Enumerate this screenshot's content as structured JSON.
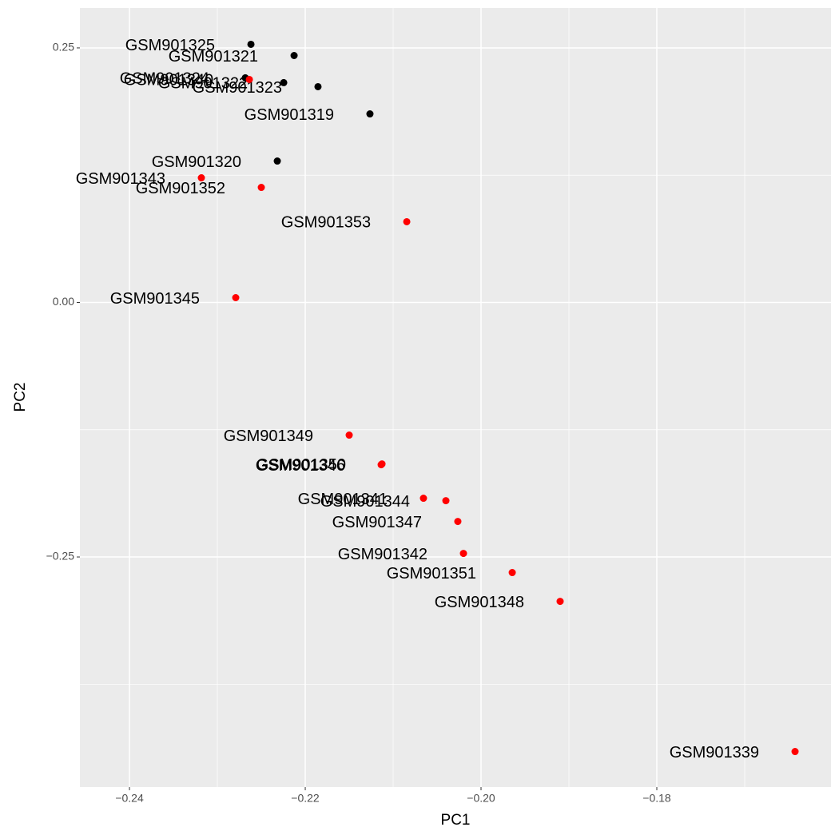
{
  "chart_data": {
    "type": "scatter",
    "xlabel": "PC1",
    "ylabel": "PC2",
    "xlim": [
      -0.24564,
      -0.16018
    ],
    "ylim": [
      -0.476,
      0.2892
    ],
    "xticks": [
      {
        "value": -0.24,
        "label": "−0.24"
      },
      {
        "value": -0.22,
        "label": "−0.22"
      },
      {
        "value": -0.2,
        "label": "−0.20"
      },
      {
        "value": -0.18,
        "label": "−0.18"
      }
    ],
    "yticks": [
      0.25,
      {
        "value": 0,
        "label": "0.00"
      },
      {
        "value": -0.25,
        "label": "−0.25"
      }
    ],
    "x_minor_breaks": [
      -0.23,
      -0.21,
      -0.19,
      -0.17
    ],
    "y_minor_breaks": [
      0.125,
      -0.125,
      -0.375
    ],
    "grid": true,
    "series": [
      {
        "color": "#000000",
        "x": [
          -0.22618,
          -0.22127,
          -0.21855,
          -0.21264,
          -0.22318,
          -0.22682,
          -0.22245
        ],
        "values": [
          0.2535,
          0.2425,
          0.2119,
          0.1852,
          0.1389,
          0.2206,
          0.2159
        ],
        "labels": [
          "GSM901325",
          "GSM901321",
          "GSM901323",
          "GSM901319",
          "GSM901320",
          "GSM901324",
          "GSM901322"
        ]
      },
      {
        "color": "#ff0000",
        "x": [
          -0.22636,
          -0.23182,
          -0.225,
          -0.20845,
          -0.22791,
          -0.215,
          -0.21127,
          -0.21136,
          -0.20655,
          -0.204,
          -0.20264,
          -0.202,
          -0.19645,
          -0.191,
          -0.16427
        ],
        "values": [
          0.219,
          0.1224,
          0.113,
          0.0793,
          0.0047,
          -0.1303,
          -0.1586,
          -0.1594,
          -0.1923,
          -0.1947,
          -0.2151,
          -0.2465,
          -0.2653,
          -0.2936,
          -0.4411
        ],
        "labels": [
          "GSM901340",
          "GSM901343",
          "GSM901352",
          "GSM901353",
          "GSM901345",
          "GSM901349",
          "GSM901350",
          "GSM901346",
          "GSM901341",
          "GSM901344",
          "GSM901347",
          "GSM901342",
          "GSM901351",
          "GSM901348",
          "GSM901339"
        ]
      }
    ]
  }
}
